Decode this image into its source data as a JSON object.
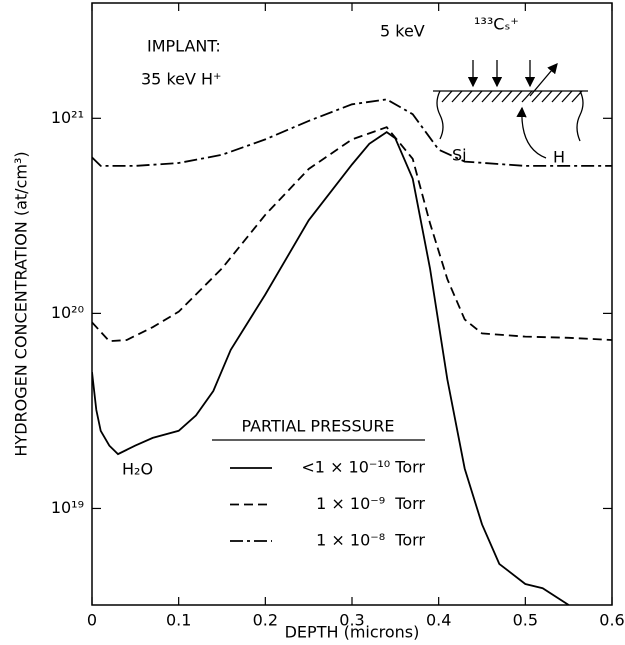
{
  "chart_data": {
    "type": "line",
    "x_label": "DEPTH (microns)",
    "y_label": "HYDROGEN CONCENTRATION (at/cm³)",
    "xlim": [
      0,
      0.6
    ],
    "xticks": [
      0,
      0.1,
      0.2,
      0.3,
      0.4,
      0.5,
      0.6
    ],
    "ylim": [
      3.2e+18,
      3.9e+21
    ],
    "log_y": true,
    "yticks": [
      {
        "value": 1e+19,
        "label": "10¹⁹"
      },
      {
        "value": 1e+20,
        "label": "10²⁰"
      },
      {
        "value": 1e+21,
        "label": "10²¹"
      }
    ],
    "legend_title": "PARTIAL PRESSURE",
    "annotations": [
      "IMPLANT:",
      "35 keV H⁺",
      "5 keV",
      "¹³³Cₛ⁺",
      "Si",
      "H",
      "H₂O"
    ],
    "series": [
      {
        "name": "<1 × 10⁻¹⁰ Torr",
        "color": "#000000",
        "dash": "solid",
        "x": [
          0,
          0.005,
          0.01,
          0.02,
          0.03,
          0.05,
          0.07,
          0.1,
          0.12,
          0.14,
          0.16,
          0.2,
          0.25,
          0.3,
          0.32,
          0.34,
          0.35,
          0.37,
          0.39,
          0.41,
          0.43,
          0.45,
          0.47,
          0.5,
          0.52,
          0.55
        ],
        "values": [
          5e+19,
          3.2e+19,
          2.5e+19,
          2.1e+19,
          1.9e+19,
          2.1e+19,
          2.3e+19,
          2.5e+19,
          3e+19,
          4e+19,
          6.5e+19,
          1.25e+20,
          3e+20,
          5.8e+20,
          7.4e+20,
          8.5e+20,
          7.9e+20,
          4.9e+20,
          1.7e+20,
          4.6e+19,
          1.6e+19,
          8.3e+18,
          5.2e+18,
          4.1e+18,
          3.9e+18,
          3.2e+18
        ]
      },
      {
        "name": "1 × 10⁻⁹  Torr",
        "color": "#000000",
        "dash": "dashed",
        "x": [
          0,
          0.02,
          0.04,
          0.07,
          0.1,
          0.15,
          0.2,
          0.25,
          0.3,
          0.34,
          0.37,
          0.39,
          0.41,
          0.43,
          0.45,
          0.5,
          0.55,
          0.6
        ],
        "values": [
          9e+19,
          7.2e+19,
          7.3e+19,
          8.5e+19,
          1.02e+20,
          1.7e+20,
          3.2e+20,
          5.5e+20,
          7.8e+20,
          9e+20,
          6.2e+20,
          2.9e+20,
          1.5e+20,
          9.3e+19,
          7.9e+19,
          7.6e+19,
          7.5e+19,
          7.3e+19
        ]
      },
      {
        "name": "1 × 10⁻⁸  Torr",
        "color": "#000000",
        "dash": "dashdot",
        "x": [
          0,
          0.01,
          0.05,
          0.1,
          0.15,
          0.2,
          0.25,
          0.3,
          0.34,
          0.37,
          0.4,
          0.43,
          0.5,
          0.6
        ],
        "values": [
          6.3e+20,
          5.7e+20,
          5.7e+20,
          5.9e+20,
          6.5e+20,
          7.8e+20,
          9.7e+20,
          1.18e+21,
          1.25e+21,
          1.05e+21,
          6.9e+20,
          6e+20,
          5.7e+20,
          5.7e+20
        ]
      }
    ]
  }
}
